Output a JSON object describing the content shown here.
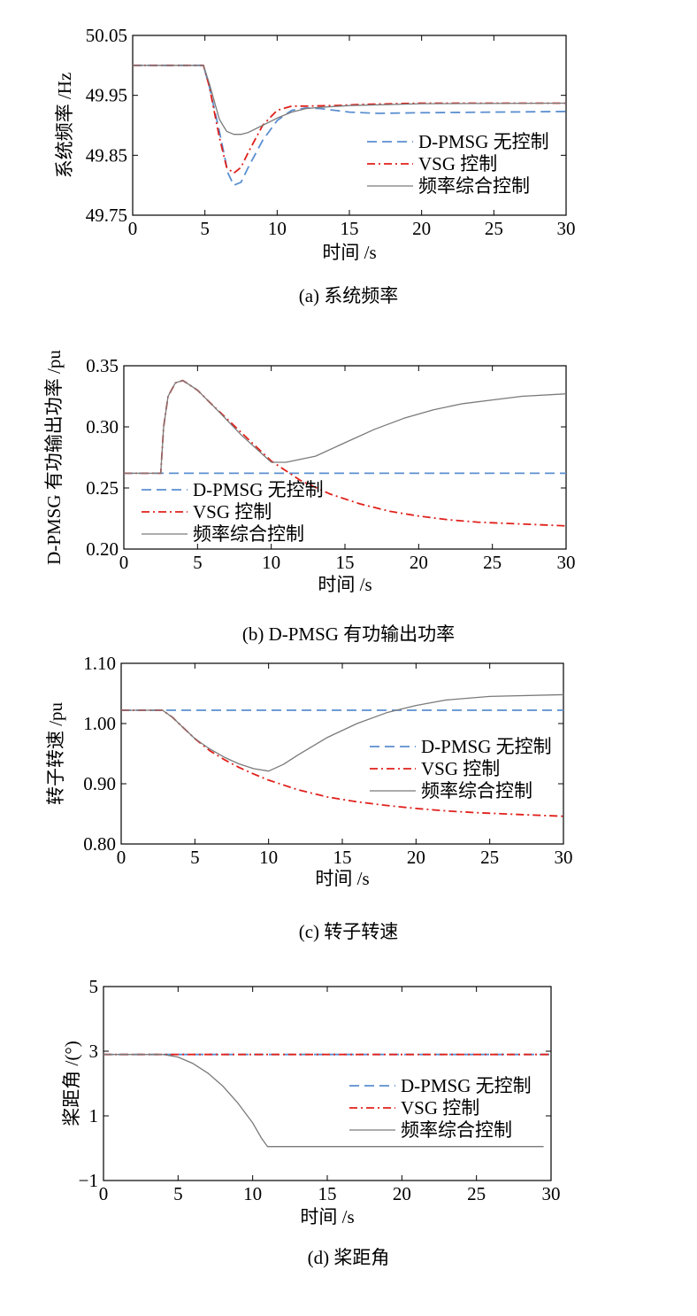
{
  "chart_data": [
    {
      "type": "line",
      "caption": "(a) 系统频率",
      "xlabel": "时间 /s",
      "ylabel": "系统频率 /Hz",
      "xlim": [
        0,
        30
      ],
      "ylim": [
        49.75,
        50.05
      ],
      "xticks": [
        "0",
        "5",
        "10",
        "15",
        "20",
        "25",
        "30"
      ],
      "yticks": [
        "49.75",
        "49.85",
        "49.95",
        "50.05"
      ],
      "grid": false,
      "legend": "center-right",
      "series": [
        {
          "name": "D-PMSG 无控制",
          "color": "#5b8fd0",
          "dash": "dashed",
          "x": [
            0,
            4.9,
            5.3,
            6.0,
            6.6,
            7.0,
            7.5,
            8.0,
            9.0,
            10.0,
            11.0,
            12.0,
            13.0,
            14.0,
            15.0,
            17.0,
            20.0,
            30.0
          ],
          "y": [
            50.0,
            50.0,
            49.965,
            49.89,
            49.82,
            49.8,
            49.805,
            49.83,
            49.875,
            49.908,
            49.925,
            49.929,
            49.928,
            49.925,
            49.922,
            49.92,
            49.921,
            49.923
          ]
        },
        {
          "name": "VSG 控制",
          "color": "#e0201b",
          "dash": "dashdot",
          "x": [
            0,
            4.9,
            5.3,
            6.0,
            6.5,
            7.0,
            7.5,
            8.0,
            9.0,
            10.0,
            11.0,
            12.0,
            14.0,
            16.0,
            20.0,
            30.0
          ],
          "y": [
            50.0,
            50.0,
            49.965,
            49.88,
            49.83,
            49.82,
            49.83,
            49.855,
            49.9,
            49.925,
            49.932,
            49.932,
            49.933,
            49.935,
            49.937,
            49.937
          ]
        },
        {
          "name": "频率综合控制",
          "color": "#7a7a7a",
          "dash": "solid",
          "x": [
            0,
            4.9,
            5.3,
            6.0,
            6.5,
            7.0,
            7.5,
            8.0,
            9.0,
            10.0,
            11.0,
            12.0,
            13.0,
            15.0,
            20.0,
            30.0
          ],
          "y": [
            50.0,
            50.0,
            49.97,
            49.91,
            49.89,
            49.885,
            49.885,
            49.888,
            49.9,
            49.912,
            49.922,
            49.928,
            49.93,
            49.933,
            49.936,
            49.937
          ]
        }
      ],
      "legend_entries": [
        "D-PMSG 无控制",
        "VSG 控制",
        "频率综合控制"
      ]
    },
    {
      "type": "line",
      "caption": "(b) D-PMSG 有功输出功率",
      "xlabel": "时间 /s",
      "ylabel": "D-PMSG 有功输出功率 /pu",
      "xlim": [
        0,
        30
      ],
      "ylim": [
        0.2,
        0.35
      ],
      "xticks": [
        "0",
        "5",
        "10",
        "15",
        "20",
        "25",
        "30"
      ],
      "yticks": [
        "0.20",
        "0.25",
        "0.30",
        "0.35"
      ],
      "grid": false,
      "legend": "lower-left",
      "series": [
        {
          "name": "D-PMSG 无控制",
          "color": "#5b8fd0",
          "dash": "dashed",
          "x": [
            0,
            30
          ],
          "y": [
            0.262,
            0.262
          ]
        },
        {
          "name": "VSG 控制",
          "color": "#e0201b",
          "dash": "dashdot",
          "x": [
            0,
            2.5,
            2.7,
            3.0,
            3.5,
            4.0,
            5.0,
            6.0,
            8.0,
            10.0,
            12.0,
            14.0,
            16.0,
            18.0,
            20.0,
            22.0,
            24.0,
            26.0,
            28.0,
            30.0
          ],
          "y": [
            0.262,
            0.262,
            0.3,
            0.325,
            0.336,
            0.338,
            0.33,
            0.318,
            0.295,
            0.272,
            0.256,
            0.245,
            0.237,
            0.231,
            0.227,
            0.224,
            0.222,
            0.221,
            0.22,
            0.219
          ]
        },
        {
          "name": "频率综合控制",
          "color": "#7a7a7a",
          "dash": "solid",
          "x": [
            0,
            2.5,
            2.7,
            3.0,
            3.5,
            4.0,
            5.0,
            6.0,
            8.0,
            10.0,
            11.0,
            13.0,
            15.0,
            17.0,
            19.0,
            21.0,
            23.0,
            25.0,
            27.0,
            30.0
          ],
          "y": [
            0.262,
            0.262,
            0.3,
            0.325,
            0.336,
            0.338,
            0.33,
            0.318,
            0.293,
            0.271,
            0.271,
            0.276,
            0.287,
            0.298,
            0.307,
            0.314,
            0.319,
            0.322,
            0.325,
            0.327
          ]
        }
      ],
      "legend_entries": [
        "D-PMSG 无控制",
        "VSG 控制",
        "频率综合控制"
      ]
    },
    {
      "type": "line",
      "caption": "(c) 转子转速",
      "xlabel": "时间 /s",
      "ylabel": "转子转速 /pu",
      "xlim": [
        0,
        30
      ],
      "ylim": [
        0.8,
        1.1
      ],
      "xticks": [
        "0",
        "5",
        "10",
        "15",
        "20",
        "25",
        "30"
      ],
      "yticks": [
        "0.80",
        "0.90",
        "1.00",
        "1.10"
      ],
      "grid": false,
      "legend": "center-right",
      "series": [
        {
          "name": "D-PMSG 无控制",
          "color": "#5b8fd0",
          "dash": "dashed",
          "x": [
            0,
            30
          ],
          "y": [
            1.022,
            1.022
          ]
        },
        {
          "name": "VSG 控制",
          "color": "#e0201b",
          "dash": "dashdot",
          "x": [
            0,
            2.8,
            3.5,
            4.0,
            5.0,
            6.0,
            7.0,
            8.0,
            9.0,
            10.0,
            12.0,
            14.0,
            16.0,
            18.0,
            20.0,
            22.0,
            24.0,
            26.0,
            28.0,
            30.0
          ],
          "y": [
            1.022,
            1.022,
            1.01,
            0.998,
            0.975,
            0.955,
            0.94,
            0.927,
            0.916,
            0.906,
            0.89,
            0.878,
            0.87,
            0.864,
            0.859,
            0.855,
            0.852,
            0.85,
            0.848,
            0.846
          ]
        },
        {
          "name": "频率综合控制",
          "color": "#7a7a7a",
          "dash": "solid",
          "x": [
            0,
            2.8,
            3.5,
            4.0,
            5.0,
            6.0,
            7.0,
            8.0,
            9.0,
            10.0,
            11.0,
            12.0,
            14.0,
            16.0,
            18.0,
            20.0,
            22.0,
            25.0,
            30.0
          ],
          "y": [
            1.022,
            1.022,
            1.01,
            0.998,
            0.975,
            0.958,
            0.944,
            0.933,
            0.925,
            0.921,
            0.932,
            0.948,
            0.977,
            1.0,
            1.018,
            1.03,
            1.039,
            1.045,
            1.048
          ]
        }
      ],
      "legend_entries": [
        "D-PMSG 无控制",
        "VSG 控制",
        "频率综合控制"
      ]
    },
    {
      "type": "line",
      "caption": "(d) 桨距角",
      "xlabel": "时间 /s",
      "ylabel": "桨距角 /(°)",
      "xlim": [
        0,
        30
      ],
      "ylim": [
        -1,
        5
      ],
      "xticks": [
        "0",
        "5",
        "10",
        "15",
        "20",
        "25",
        "30"
      ],
      "yticks": [
        "−1",
        "1",
        "3",
        "5"
      ],
      "grid": false,
      "legend": "center-right",
      "series": [
        {
          "name": "D-PMSG 无控制",
          "color": "#5b8fd0",
          "dash": "dashed",
          "x": [
            0,
            30
          ],
          "y": [
            2.9,
            2.9
          ]
        },
        {
          "name": "VSG 控制",
          "color": "#e0201b",
          "dash": "dashdot",
          "x": [
            0,
            30
          ],
          "y": [
            2.9,
            2.9
          ]
        },
        {
          "name": "频率综合控制",
          "color": "#7a7a7a",
          "dash": "solid",
          "x": [
            0,
            4.0,
            5.0,
            6.0,
            7.0,
            8.0,
            9.0,
            10.0,
            10.6,
            11.0,
            29.5
          ],
          "y": [
            2.9,
            2.9,
            2.82,
            2.62,
            2.32,
            1.92,
            1.4,
            0.78,
            0.3,
            0.05,
            0.05
          ]
        }
      ],
      "legend_entries": [
        "D-PMSG 无控制",
        "VSG 控制",
        "频率综合控制"
      ]
    }
  ]
}
